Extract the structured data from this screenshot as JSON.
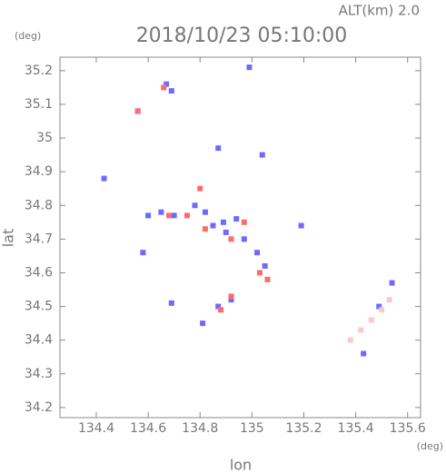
{
  "chart_data": {
    "type": "scatter",
    "title": "2018/10/23 05:10:00",
    "subtitle": "ALT(km) 2.0",
    "x_label": "lon",
    "y_label": "lat",
    "x_unit": "(deg)",
    "y_unit": "(deg)",
    "xlim": [
      134.26,
      135.65
    ],
    "ylim": [
      34.17,
      35.24
    ],
    "xticks": [
      134.4,
      134.6,
      134.8,
      135.0,
      135.2,
      135.4,
      135.6
    ],
    "yticks": [
      34.2,
      34.3,
      34.4,
      34.5,
      34.6,
      34.7,
      34.8,
      34.9,
      35.0,
      35.1,
      35.2
    ],
    "series": [
      {
        "color": "#6b6bff",
        "x": [
          134.56,
          134.67,
          134.69,
          134.87,
          134.99,
          135.04,
          134.43,
          134.6,
          134.65,
          134.7,
          134.78,
          134.82,
          134.85,
          134.9,
          134.94,
          134.97,
          135.02,
          135.05,
          134.58,
          134.69,
          134.87,
          134.92,
          135.19,
          135.54,
          135.43,
          135.49,
          134.81,
          134.89
        ],
        "values": [
          35.08,
          35.16,
          35.14,
          34.97,
          35.21,
          34.95,
          34.88,
          34.77,
          34.78,
          34.77,
          34.8,
          34.78,
          34.74,
          34.72,
          34.76,
          34.7,
          34.66,
          34.62,
          34.66,
          34.51,
          34.5,
          34.52,
          34.74,
          34.57,
          34.36,
          34.5,
          34.45,
          34.75
        ]
      },
      {
        "color": "#ff6b6b",
        "x": [
          134.66,
          134.56,
          134.8,
          134.75,
          134.82,
          134.92,
          135.03,
          135.06,
          134.92,
          134.88,
          134.68,
          134.97
        ],
        "values": [
          35.15,
          35.08,
          34.85,
          34.77,
          34.73,
          34.7,
          34.6,
          34.58,
          34.53,
          34.49,
          34.77,
          34.75
        ]
      },
      {
        "color": "#ffc8c8",
        "x": [
          135.38,
          135.42,
          135.46,
          135.5,
          135.53
        ],
        "values": [
          34.4,
          34.43,
          34.46,
          34.49,
          34.52
        ]
      }
    ]
  }
}
